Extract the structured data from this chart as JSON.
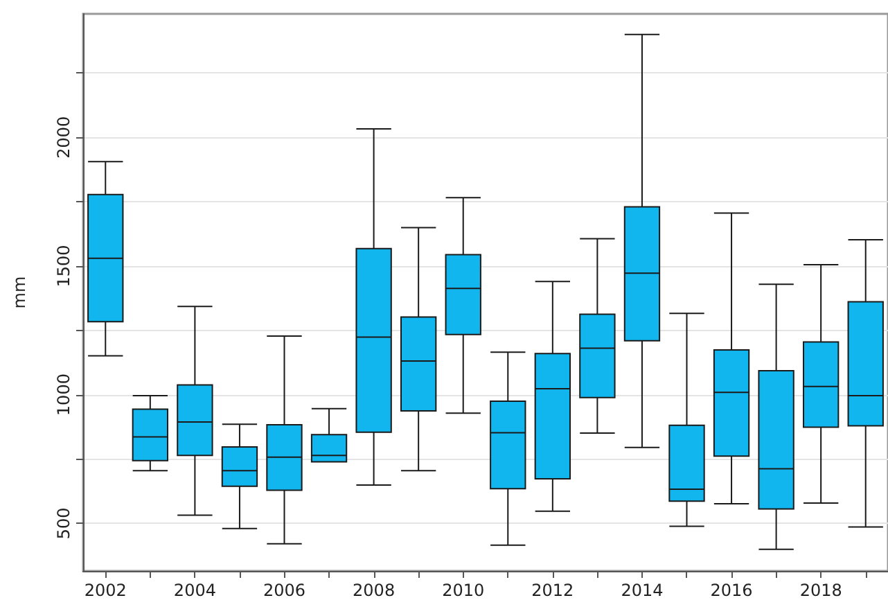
{
  "chart_data": {
    "type": "box",
    "ylabel": "mm",
    "categories": [
      "2002",
      null,
      "2004",
      null,
      "2006",
      null,
      "2008",
      null,
      "2010",
      null,
      "2012",
      null,
      "2014",
      null,
      "2016",
      null,
      "2018",
      null
    ],
    "color": "#12b6ee",
    "boxes": [
      {
        "low": 1151,
        "q1": 1284,
        "median": 1530,
        "q3": 1778,
        "high": 1906
      },
      {
        "low": 705,
        "q1": 744,
        "median": 836,
        "q3": 944,
        "high": 996
      },
      {
        "low": 532,
        "q1": 764,
        "median": 894,
        "q3": 1038,
        "high": 1343
      },
      {
        "low": 480,
        "q1": 644,
        "median": 705,
        "q3": 797,
        "high": 885
      },
      {
        "low": 421,
        "q1": 629,
        "median": 757,
        "q3": 883,
        "high": 1228
      },
      {
        "low": 739,
        "q1": 739,
        "median": 764,
        "q3": 845,
        "high": 946
      },
      {
        "low": 649,
        "q1": 854,
        "median": 1224,
        "q3": 1568,
        "high": 2033
      },
      {
        "low": 705,
        "q1": 937,
        "median": 1131,
        "q3": 1302,
        "high": 1649
      },
      {
        "low": 928,
        "q1": 1234,
        "median": 1413,
        "q3": 1544,
        "high": 1766
      },
      {
        "low": 415,
        "q1": 635,
        "median": 852,
        "q3": 975,
        "high": 1165
      },
      {
        "low": 547,
        "q1": 673,
        "median": 1023,
        "q3": 1160,
        "high": 1440
      },
      {
        "low": 851,
        "q1": 989,
        "median": 1181,
        "q3": 1313,
        "high": 1606
      },
      {
        "low": 795,
        "q1": 1210,
        "median": 1472,
        "q3": 1730,
        "high": 2400
      },
      {
        "low": 489,
        "q1": 586,
        "median": 633,
        "q3": 881,
        "high": 1316
      },
      {
        "low": 576,
        "q1": 761,
        "median": 1009,
        "q3": 1174,
        "high": 1706
      },
      {
        "low": 399,
        "q1": 556,
        "median": 712,
        "q3": 1093,
        "high": 1429
      },
      {
        "low": 579,
        "q1": 874,
        "median": 1032,
        "q3": 1205,
        "high": 1505
      },
      {
        "low": 486,
        "q1": 879,
        "median": 996,
        "q3": 1361,
        "high": 1602
      }
    ],
    "ylim": [
      315,
      2480
    ],
    "yticks": [
      500,
      {
        "value": 750,
        "label": null
      },
      1000,
      {
        "value": 1250,
        "label": null
      },
      1500,
      {
        "value": 1750,
        "label": null
      },
      2000,
      {
        "value": 2250,
        "label": null
      }
    ],
    "grid": "y"
  }
}
